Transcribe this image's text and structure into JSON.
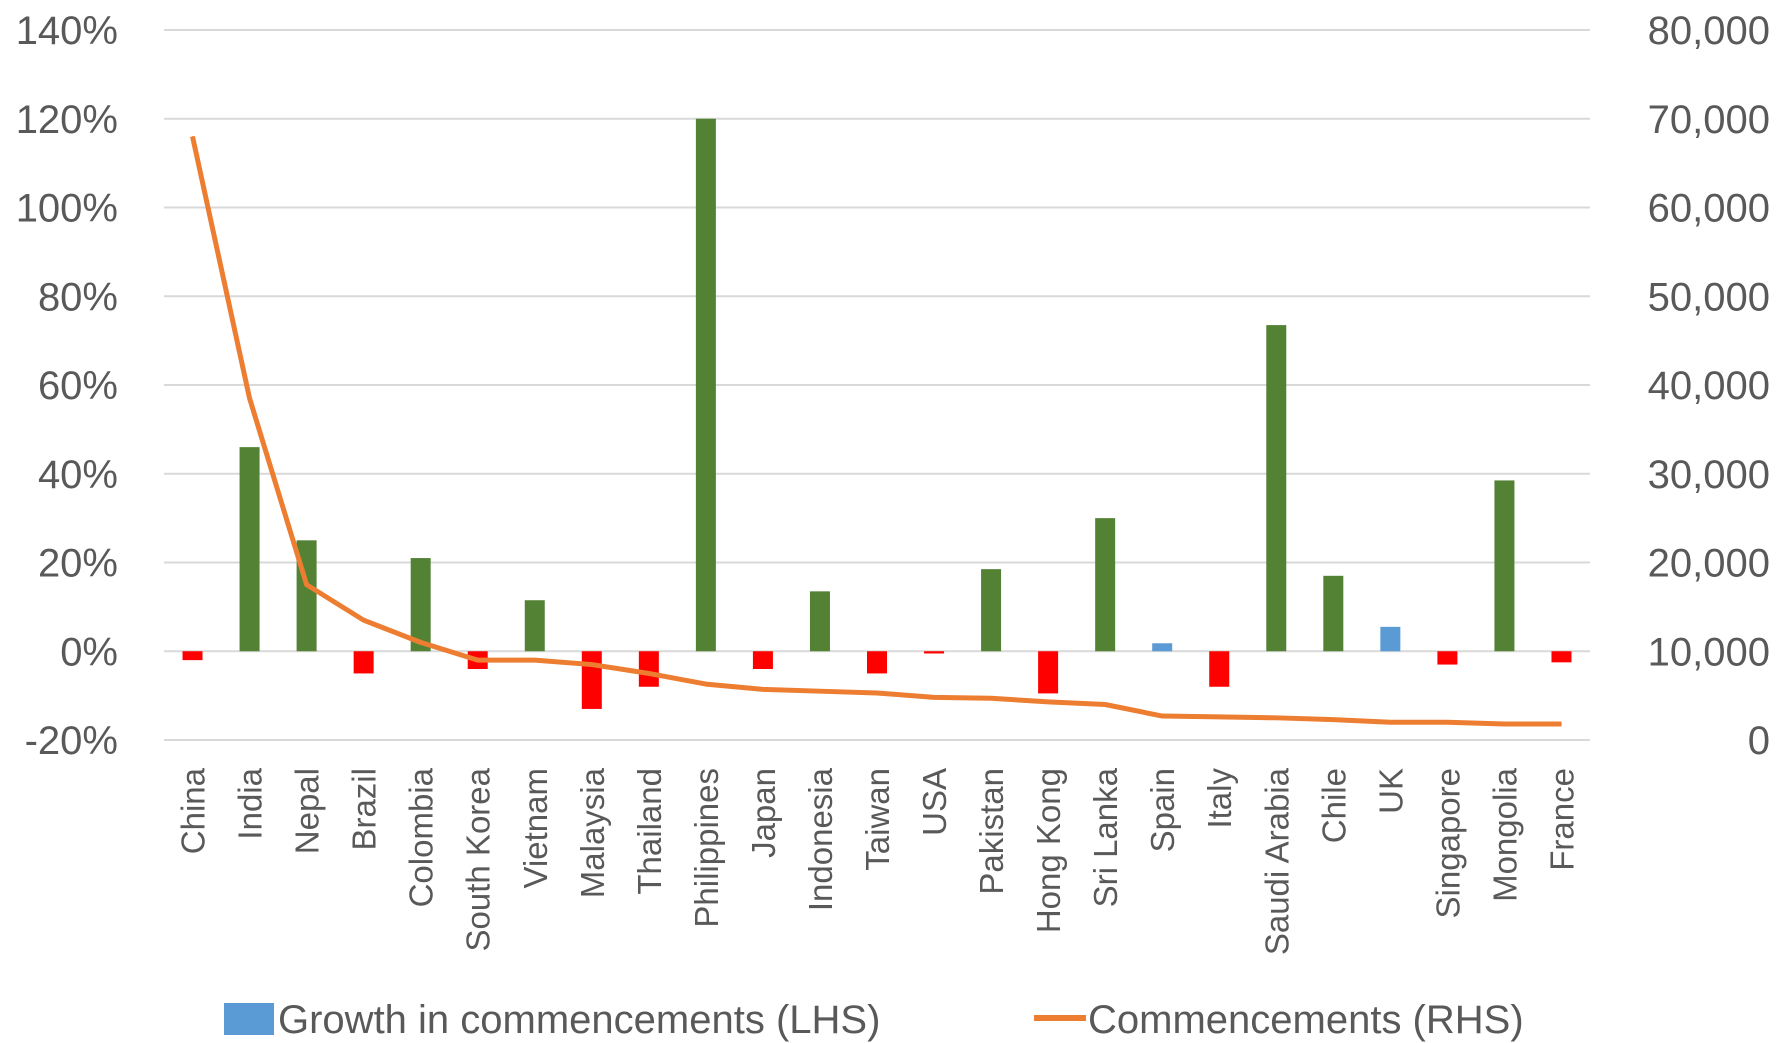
{
  "chart_data": {
    "type": "bar",
    "categories": [
      "China",
      "India",
      "Nepal",
      "Brazil",
      "Colombia",
      "South Korea",
      "Vietnam",
      "Malaysia",
      "Thailand",
      "Philippines",
      "Japan",
      "Indonesia",
      "Taiwan",
      "USA",
      "Pakistan",
      "Hong Kong",
      "Sri Lanka",
      "Spain",
      "Italy",
      "Saudi Arabia",
      "Chile",
      "UK",
      "Singapore",
      "Mongolia",
      "France"
    ],
    "y_left": {
      "ylim": [
        -20,
        140
      ],
      "ticks": [
        -20,
        0,
        20,
        40,
        60,
        80,
        100,
        120,
        140
      ],
      "tick_labels": [
        "-20%",
        "0%",
        "20%",
        "40%",
        "60%",
        "80%",
        "100%",
        "120%",
        "140%"
      ]
    },
    "y_right": {
      "ylim": [
        0,
        80000
      ],
      "ticks": [
        0,
        10000,
        20000,
        30000,
        40000,
        50000,
        60000,
        70000,
        80000
      ],
      "tick_labels": [
        "0",
        "10,000",
        "20,000",
        "30,000",
        "40,000",
        "50,000",
        "60,000",
        "70,000",
        "80,000"
      ]
    },
    "grid": true,
    "legend_position": "bottom",
    "series": [
      {
        "name": "Growth in commencements (LHS)",
        "type": "bar",
        "axis": "left",
        "unit": "%",
        "legend_color": "#5b9bd5",
        "values": [
          -2,
          46,
          25,
          -5,
          21,
          -4,
          11.5,
          -13,
          -8,
          120,
          -4,
          13.5,
          -5,
          -0.5,
          18.5,
          -9.5,
          30,
          1.8,
          -8,
          73.5,
          17,
          5.5,
          -3,
          38.5,
          -2.5
        ],
        "colors": [
          "#ff0000",
          "#548235",
          "#548235",
          "#ff0000",
          "#548235",
          "#ff0000",
          "#548235",
          "#ff0000",
          "#ff0000",
          "#548235",
          "#ff0000",
          "#548235",
          "#ff0000",
          "#ff0000",
          "#548235",
          "#ff0000",
          "#548235",
          "#5b9bd5",
          "#ff0000",
          "#548235",
          "#548235",
          "#5b9bd5",
          "#ff0000",
          "#548235",
          "#ff0000"
        ]
      },
      {
        "name": "Commencements (RHS)",
        "type": "line",
        "axis": "right",
        "color": "#ed7d31",
        "values": [
          68000,
          38500,
          17500,
          13500,
          11000,
          9000,
          9000,
          8500,
          7500,
          6300,
          5700,
          5500,
          5300,
          4800,
          4700,
          4300,
          4000,
          2700,
          2600,
          2500,
          2300,
          2000,
          2000,
          1800,
          1800
        ]
      }
    ]
  }
}
